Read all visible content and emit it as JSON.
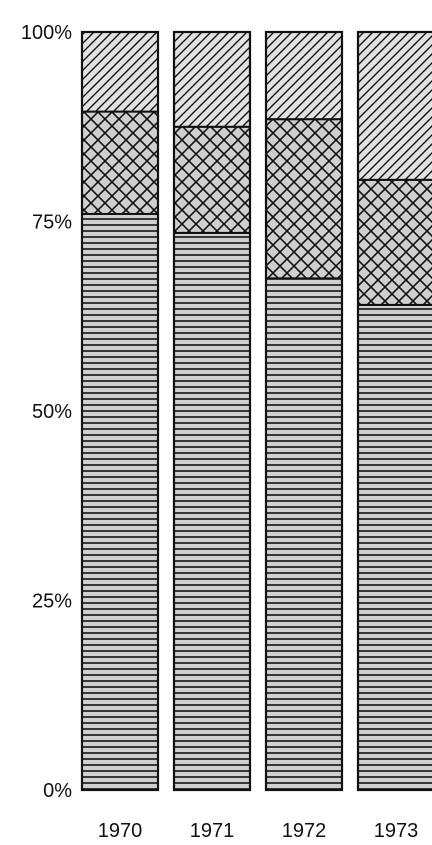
{
  "chart_data": {
    "type": "bar",
    "stacked": true,
    "percent_scale": true,
    "categories": [
      "1970",
      "1971",
      "1972",
      "1973"
    ],
    "series": [
      {
        "pattern": "horizontal-lines",
        "values": [
          76,
          73.5,
          67.5,
          64
        ]
      },
      {
        "pattern": "crosshatch",
        "values": [
          13.5,
          14,
          21,
          16.5
        ]
      },
      {
        "pattern": "diagonal-lines",
        "values": [
          10.5,
          12.5,
          11.5,
          19.5
        ]
      }
    ],
    "yticks": [
      {
        "value": 0,
        "label": "0%"
      },
      {
        "value": 25,
        "label": "25%"
      },
      {
        "value": 50,
        "label": "50%"
      },
      {
        "value": 75,
        "label": "75%"
      },
      {
        "value": 100,
        "label": "100%"
      }
    ],
    "ylim": [
      0,
      100
    ],
    "grid": false,
    "legend": "none",
    "colors": {
      "ink": "#111111",
      "fill_tone": "#cfcfcf",
      "background": "#ffffff"
    }
  }
}
